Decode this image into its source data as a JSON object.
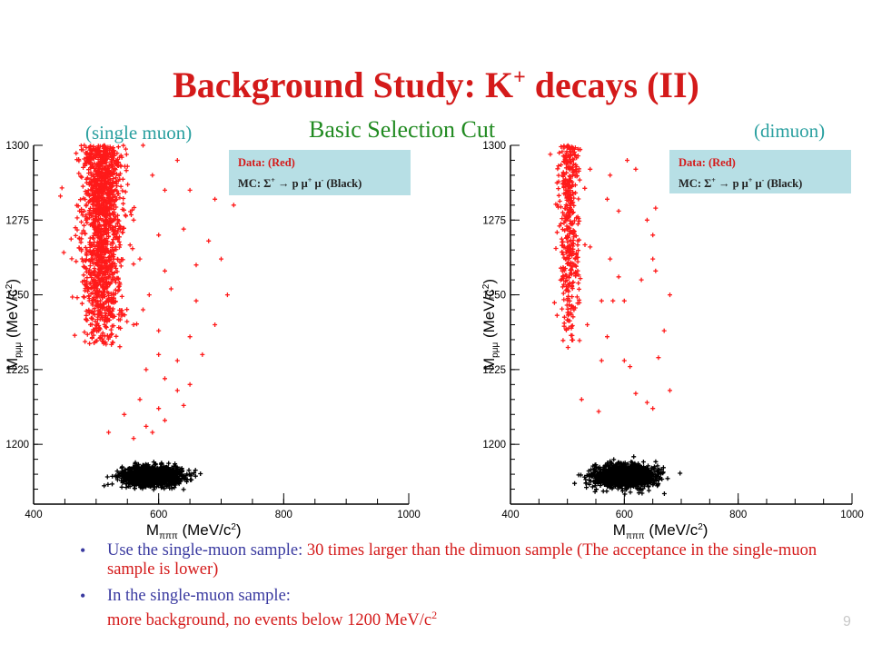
{
  "slide": {
    "title_main": "Background Study: K",
    "title_sup": "+",
    "title_tail": " decays (II)",
    "subtitle": "Basic Selection Cut",
    "left_caption": "(single muon)",
    "right_caption": "(dimuon)",
    "page_number": "9"
  },
  "legend": {
    "line1": "Data: (Red)",
    "line2_prefix": "MC: Σ",
    "line2_sup1": "+",
    "line2_mid": " → p μ",
    "line2_sup2": "+",
    "line2_mid2": " μ",
    "line2_sup3": "-",
    "line2_suffix": " (Black)"
  },
  "bullets": [
    {
      "lead": "Use the single-muon sample: ",
      "highlight": "30 times larger than the dimuon sample (The acceptance in the single-muon sample is lower)"
    },
    {
      "lead": "In the single-muon sample:",
      "highlight": "more background, no events below 1200 MeV/c",
      "highlight_sup": "2"
    }
  ],
  "chart_data": [
    {
      "type": "scatter",
      "panel": "single muon",
      "xlabel": "M_πππ (MeV/c²)",
      "ylabel": "M_pμμ (MeV/c²)",
      "xlim": [
        400,
        1000
      ],
      "ylim": [
        1180,
        1300
      ],
      "xticks": [
        400,
        600,
        800,
        1000
      ],
      "yticks": [
        1200,
        1225,
        1250,
        1275,
        1300
      ],
      "series": [
        {
          "name": "Data",
          "color": "#ff1a1a",
          "marker": "+",
          "band": {
            "x_center": 510,
            "x_sigma": 16,
            "y_min": 1232,
            "y_max": 1300,
            "n": 1400
          },
          "points": [
            [
              575,
              1300
            ],
            [
              590,
              1290
            ],
            [
              610,
              1285
            ],
            [
              630,
              1295
            ],
            [
              650,
              1285
            ],
            [
              690,
              1282
            ],
            [
              720,
              1280
            ],
            [
              560,
              1275
            ],
            [
              600,
              1270
            ],
            [
              640,
              1272
            ],
            [
              680,
              1268
            ],
            [
              570,
              1262
            ],
            [
              610,
              1258
            ],
            [
              660,
              1260
            ],
            [
              700,
              1262
            ],
            [
              585,
              1250
            ],
            [
              620,
              1252
            ],
            [
              660,
              1248
            ],
            [
              710,
              1250
            ],
            [
              560,
              1240
            ],
            [
              600,
              1238
            ],
            [
              650,
              1236
            ],
            [
              690,
              1240
            ],
            [
              630,
              1228
            ],
            [
              670,
              1230
            ],
            [
              580,
              1225
            ],
            [
              610,
              1222
            ],
            [
              650,
              1220
            ],
            [
              570,
              1215
            ],
            [
              600,
              1212
            ],
            [
              630,
              1218
            ],
            [
              545,
              1210
            ],
            [
              580,
              1206
            ],
            [
              610,
              1208
            ],
            [
              520,
              1204
            ],
            [
              560,
              1202
            ],
            [
              590,
              1204
            ],
            [
              640,
              1213
            ],
            [
              600,
              1230
            ],
            [
              575,
              1245
            ]
          ]
        },
        {
          "name": "MC",
          "color": "#000000",
          "marker": "+",
          "cluster": {
            "x_center": 590,
            "x_sigma": 24,
            "y_center": 1189.5,
            "y_sigma": 1.6,
            "n": 1200
          }
        }
      ]
    },
    {
      "type": "scatter",
      "panel": "dimuon",
      "xlabel": "M_πππ (MeV/c²)",
      "ylabel": "M_pμμ (MeV/c²)",
      "xlim": [
        400,
        1000
      ],
      "ylim": [
        1180,
        1300
      ],
      "xticks": [
        400,
        600,
        800,
        1000
      ],
      "yticks": [
        1200,
        1225,
        1250,
        1275,
        1300
      ],
      "series": [
        {
          "name": "Data",
          "color": "#ff1a1a",
          "marker": "+",
          "band": {
            "x_center": 503,
            "x_sigma": 9,
            "y_min": 1232,
            "y_max": 1300,
            "n": 420
          },
          "points": [
            [
              470,
              1297
            ],
            [
              540,
              1292
            ],
            [
              575,
              1290
            ],
            [
              605,
              1295
            ],
            [
              620,
              1292
            ],
            [
              650,
              1262
            ],
            [
              655,
              1279
            ],
            [
              695,
              1291
            ],
            [
              720,
              1288
            ],
            [
              570,
              1282
            ],
            [
              590,
              1278
            ],
            [
              640,
              1275
            ],
            [
              650,
              1270
            ],
            [
              575,
              1262
            ],
            [
              590,
              1256
            ],
            [
              630,
              1255
            ],
            [
              655,
              1258
            ],
            [
              560,
              1248
            ],
            [
              600,
              1248
            ],
            [
              680,
              1250
            ],
            [
              535,
              1240
            ],
            [
              570,
              1236
            ],
            [
              560,
              1228
            ],
            [
              600,
              1228
            ],
            [
              660,
              1229
            ],
            [
              610,
              1226
            ],
            [
              680,
              1218
            ],
            [
              640,
              1214
            ],
            [
              650,
              1212
            ],
            [
              555,
              1211
            ],
            [
              525,
              1215
            ],
            [
              620,
              1217
            ],
            [
              670,
              1238
            ],
            [
              580,
              1248
            ],
            [
              540,
              1266
            ],
            [
              600,
              1189.8
            ],
            [
              560,
              1189
            ]
          ]
        },
        {
          "name": "MC",
          "color": "#000000",
          "marker": "+",
          "cluster": {
            "x_center": 600,
            "x_sigma": 26,
            "y_center": 1189.5,
            "y_sigma": 1.8,
            "n": 1400
          }
        }
      ]
    }
  ]
}
